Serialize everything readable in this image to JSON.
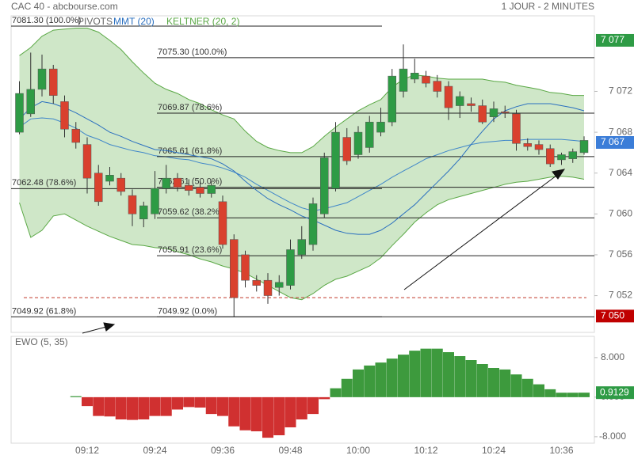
{
  "chart_data": [
    {
      "type": "candlestick",
      "title": "CAC 40 - abcbourse.com",
      "subtitle": "1 JOUR - 2 MINUTES",
      "categories": [
        null,
        null,
        null,
        null,
        null,
        null,
        "09:12",
        null,
        null,
        null,
        null,
        null,
        "09:24",
        null,
        null,
        null,
        null,
        null,
        "09:36",
        null,
        null,
        null,
        null,
        null,
        "09:48",
        null,
        null,
        null,
        null,
        null,
        "10:00",
        null,
        null,
        null,
        null,
        null,
        "10:12",
        null,
        null,
        null,
        null,
        null,
        "10:24",
        null,
        null,
        null,
        null,
        null,
        "10:36",
        null,
        null
      ],
      "open": [
        7068.0,
        7069.8,
        7072.2,
        7074.2,
        7071.0,
        7068.3,
        7066.8,
        7064.0,
        7063.2,
        7063.5,
        7061.8,
        7059.5,
        7060.0,
        7062.5,
        7063.5,
        7062.8,
        7062.6,
        7062.0,
        7061.2,
        7057.5,
        7056.0,
        7053.5,
        7053.5,
        7052.8,
        7053.0,
        7056.0,
        7057.0,
        7060.0,
        7062.5,
        7067.5,
        7065.8,
        7066.5,
        7068.0,
        7069.0,
        7072.0,
        7073.2,
        7073.5,
        7073.0,
        7072.5,
        7070.6,
        7070.8,
        7070.6,
        7069.5,
        7070.0,
        7069.8,
        7066.9,
        7066.8,
        7066.4,
        7065.3,
        7065.4,
        7066.0
      ],
      "high": [
        7073.0,
        7075.8,
        7075.6,
        7074.6,
        7071.6,
        7069.0,
        7067.5,
        7064.8,
        7064.6,
        7064.0,
        7062.4,
        7061.2,
        7064.2,
        7064.8,
        7064.0,
        7063.4,
        7063.2,
        7063.2,
        7061.8,
        7058.0,
        7056.4,
        7054.0,
        7054.2,
        7054.0,
        7057.5,
        7058.8,
        7061.6,
        7066.0,
        7069.0,
        7068.4,
        7068.6,
        7069.6,
        7070.4,
        7074.2,
        7076.6,
        7075.2,
        7074.0,
        7073.6,
        7073.0,
        7072.0,
        7071.4,
        7071.2,
        7071.0,
        7070.6,
        7070.2,
        7067.4,
        7067.2,
        7066.8,
        7066.0,
        7066.4,
        7067.6
      ],
      "low": [
        7067.8,
        7069.5,
        7071.5,
        7070.8,
        7067.5,
        7066.4,
        7062.0,
        7060.8,
        7062.8,
        7061.8,
        7058.8,
        7058.7,
        7059.5,
        7062.0,
        7062.2,
        7061.8,
        7061.6,
        7061.6,
        7056.6,
        7049.9,
        7052.8,
        7052.4,
        7051.2,
        7052.0,
        7052.6,
        7055.6,
        7056.4,
        7059.6,
        7062.2,
        7064.8,
        7065.4,
        7066.0,
        7067.6,
        7068.6,
        7071.4,
        7072.8,
        7072.4,
        7071.4,
        7069.2,
        7069.4,
        7070.0,
        7068.8,
        7069.0,
        7069.4,
        7066.2,
        7066.2,
        7065.8,
        7064.6,
        7064.8,
        7065.0,
        7065.8
      ],
      "close": [
        7071.8,
        7072.2,
        7074.2,
        7071.6,
        7068.3,
        7067.0,
        7063.5,
        7061.2,
        7063.8,
        7062.2,
        7060.0,
        7060.8,
        7062.5,
        7063.5,
        7062.6,
        7062.3,
        7062.0,
        7062.8,
        7057.0,
        7051.8,
        7053.5,
        7053.0,
        7052.0,
        7053.3,
        7056.5,
        7057.5,
        7061.0,
        7065.5,
        7068.0,
        7065.2,
        7068.0,
        7069.0,
        7069.0,
        7073.5,
        7074.2,
        7073.8,
        7072.8,
        7072.0,
        7070.4,
        7071.5,
        7070.6,
        7069.0,
        7070.3,
        7069.9,
        7066.9,
        7066.6,
        7066.3,
        7064.9,
        7065.8,
        7066.1,
        7067.2
      ],
      "up_color": "#2e9b45",
      "down_color": "#d9412e",
      "series": [
        {
          "name": "MMT (20)",
          "color": "#2a6fbf",
          "values": [
            7069.3,
            7070.4,
            7071.0,
            7070.8,
            7070.4,
            7069.9,
            7069.3,
            7068.7,
            7068.0,
            7067.6,
            7067.1,
            7066.7,
            7066.3,
            7066.2,
            7066.0,
            7065.8,
            7065.6,
            7065.4,
            7064.9,
            7064.2,
            7063.2,
            7062.3,
            7061.5,
            7060.9,
            7060.4,
            7059.8,
            7059.4,
            7058.9,
            7058.4,
            7058.1,
            7058.0,
            7058.0,
            7058.4,
            7059.1,
            7060.0,
            7060.9,
            7062.0,
            7063.1,
            7064.2,
            7065.4,
            7066.8,
            7068.1,
            7069.3,
            7070.1,
            7070.5,
            7070.8,
            7070.8,
            7070.8,
            7070.6,
            7070.4,
            7070.1
          ]
        }
      ],
      "keltner": {
        "name": "KELTNER (20, 2)",
        "color": "#5aa845",
        "fill": "#cfe7c8",
        "middle_color": "#3f86c9",
        "upper": [
          7075.5,
          7076.3,
          7077.4,
          7078.0,
          7078.1,
          7078.2,
          7078.2,
          7077.8,
          7077.0,
          7076.1,
          7074.9,
          7073.8,
          7072.8,
          7072.2,
          7071.8,
          7071.2,
          7070.8,
          7070.2,
          7069.7,
          7069.3,
          7068.1,
          7067.1,
          7066.5,
          7066.2,
          7066.0,
          7066.0,
          7066.6,
          7067.6,
          7068.5,
          7069.3,
          7070.1,
          7070.7,
          7071.2,
          7072.4,
          7073.2,
          7073.6,
          7073.5,
          7073.3,
          7073.2,
          7073.2,
          7073.2,
          7073.2,
          7073.0,
          7072.9,
          7072.6,
          7072.4,
          7072.2,
          7071.9,
          7071.8,
          7071.6,
          7071.6
        ],
        "middle": [
          7068.5,
          7069.3,
          7069.4,
          7069.3,
          7068.9,
          7068.4,
          7067.7,
          7067.3,
          7066.8,
          7066.5,
          7066.2,
          7066.0,
          7065.7,
          7065.6,
          7065.4,
          7065.3,
          7065.0,
          7064.8,
          7064.5,
          7064.1,
          7063.6,
          7062.9,
          7062.3,
          7061.7,
          7061.1,
          7060.6,
          7060.3,
          7060.5,
          7060.8,
          7061.1,
          7061.7,
          7062.3,
          7062.9,
          7063.6,
          7064.2,
          7064.8,
          7065.4,
          7065.8,
          7066.2,
          7066.5,
          7066.8,
          7067.0,
          7067.1,
          7067.2,
          7067.2,
          7067.3,
          7067.3,
          7067.3,
          7067.3,
          7067.2,
          7067.1
        ],
        "lower": [
          7061.1,
          7057.7,
          7058.4,
          7059.8,
          7060.0,
          7059.4,
          7058.8,
          7058.3,
          7057.8,
          7057.4,
          7057.0,
          7056.9,
          7056.7,
          7056.6,
          7056.3,
          7056.0,
          7055.6,
          7055.3,
          7054.9,
          7054.6,
          7054.2,
          7053.6,
          7053.0,
          7052.4,
          7051.8,
          7051.6,
          7052.2,
          7053.0,
          7053.6,
          7053.9,
          7054.4,
          7054.9,
          7055.7,
          7056.9,
          7058.0,
          7059.2,
          7060.1,
          7060.9,
          7061.4,
          7061.7,
          7062.0,
          7062.3,
          7062.6,
          7062.9,
          7063.1,
          7063.2,
          7063.4,
          7063.6,
          7063.7,
          7063.6,
          7063.4
        ]
      },
      "pivots": {
        "name": "PIVOTS",
        "left": [
          {
            "value": 7081.3,
            "label": "7081.30 (100.0%)"
          },
          {
            "value": 7062.48,
            "label": "7062.48 (78.6%)"
          },
          {
            "value": 7049.92,
            "label": "7049.92 (61.8%)"
          }
        ],
        "right": [
          {
            "value": 7075.3,
            "label": "7075.30 (100.0%)"
          },
          {
            "value": 7069.87,
            "label": "7069.87 (78.6%)"
          },
          {
            "value": 7065.61,
            "label": "7065.61 (61.8%)"
          },
          {
            "value": 7062.61,
            "label": "7062.61 (50.0%)"
          },
          {
            "value": 7059.62,
            "label": "7059.62 (38.2%)"
          },
          {
            "value": 7055.91,
            "label": "7055.91 (23.6%)"
          },
          {
            "value": 7049.92,
            "label": "7049.92 (0.0%)"
          }
        ]
      },
      "dashed_level": 7051.8,
      "price_tags": [
        {
          "value": 7077,
          "label": "7 077",
          "color": "#2e9b45"
        },
        {
          "value": 7067,
          "label": "7 067",
          "color": "#3b7dd8"
        },
        {
          "value": 7050,
          "label": "7 050",
          "color": "#c00000"
        }
      ],
      "ylim": [
        7048.4,
        7079.4
      ],
      "yticks": [
        {
          "value": 7052,
          "label": "7 052"
        },
        {
          "value": 7056,
          "label": "7 056"
        },
        {
          "value": 7060,
          "label": "7 060"
        },
        {
          "value": 7064,
          "label": "7 064"
        },
        {
          "value": 7068,
          "label": "7 068"
        },
        {
          "value": 7072,
          "label": "7 072"
        }
      ],
      "grid": false
    },
    {
      "type": "bar",
      "title": "EWO (5, 35)",
      "values": [
        null,
        null,
        null,
        null,
        null,
        0.2,
        -1.8,
        -3.8,
        -3.9,
        -4.5,
        -4.6,
        -4.5,
        -3.8,
        -3.8,
        -2.5,
        -2.0,
        -2.1,
        -3.4,
        -3.8,
        -5.9,
        -6.7,
        -6.9,
        -8.2,
        -7.7,
        -6.1,
        -4.5,
        -3.4,
        -0.4,
        1.8,
        3.7,
        5.6,
        6.4,
        7.0,
        7.8,
        8.6,
        9.4,
        9.8,
        9.8,
        9.1,
        8.3,
        7.5,
        6.7,
        5.9,
        5.6,
        4.6,
        3.7,
        2.6,
        1.6,
        0.9,
        0.9,
        0.9129
      ],
      "up_color": "#3d9a3d",
      "down_color": "#d03030",
      "tag_color": "#2e9b45",
      "ylim": [
        -9.3,
        12.3
      ],
      "yticks": [
        {
          "value": -8,
          "label": "-8.000"
        },
        {
          "value": 0,
          "label": "0.000"
        },
        {
          "value": 8,
          "label": "8.000"
        }
      ],
      "grid": false
    }
  ]
}
